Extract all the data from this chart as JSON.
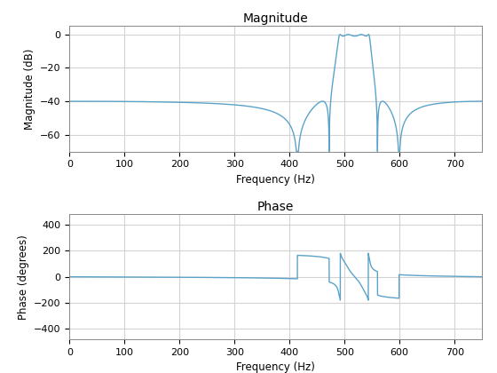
{
  "title_mag": "Magnitude",
  "title_phase": "Phase",
  "xlabel": "Frequency (Hz)",
  "ylabel_mag": "Magnitude (dB)",
  "ylabel_phase": "Phase (degrees)",
  "line_color": "#5ba3c9",
  "line_width": 1.0,
  "background_color": "#ffffff",
  "grid_color": "#d3d3d3",
  "fs": 1500,
  "mag_ylim": [
    -70,
    5
  ],
  "mag_yticks": [
    0,
    -20,
    -40,
    -60
  ],
  "phase_ylim": [
    -480,
    480
  ],
  "phase_yticks": [
    400,
    200,
    0,
    -200,
    -400
  ],
  "xlim": [
    0,
    750
  ],
  "xticks": [
    0,
    100,
    200,
    300,
    400,
    500,
    600,
    700
  ]
}
